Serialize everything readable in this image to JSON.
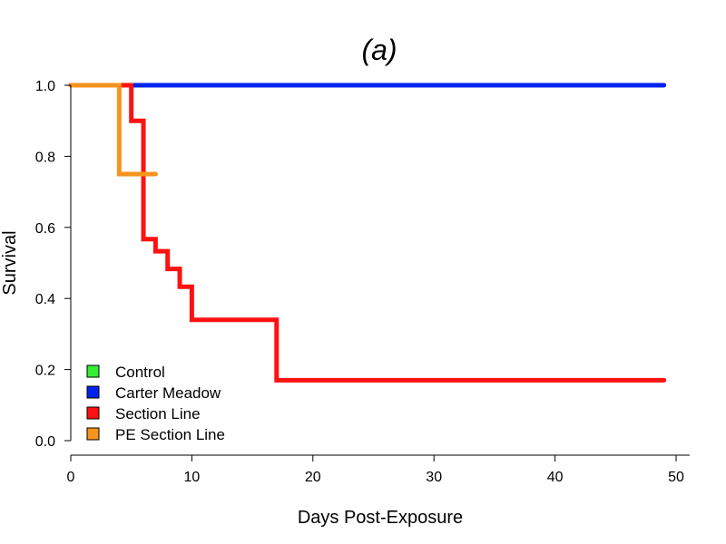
{
  "chart_data": {
    "type": "line",
    "step": true,
    "title": "(a)",
    "xlabel": "Days Post-Exposure",
    "ylabel": "Survival",
    "xlim": [
      0,
      50
    ],
    "ylim": [
      0,
      1.0
    ],
    "x_ticks": [
      "0",
      "10",
      "20",
      "30",
      "40",
      "50"
    ],
    "y_ticks": [
      "0.0",
      "0.2",
      "0.4",
      "0.6",
      "0.8",
      "1.0"
    ],
    "grid": false,
    "legend_position": "bottom-left",
    "series": [
      {
        "name": "Control",
        "color": "#33ee33",
        "points": []
      },
      {
        "name": "Carter Meadow",
        "color": "#0022ee",
        "points": [
          [
            0,
            1.0
          ],
          [
            49,
            1.0
          ]
        ]
      },
      {
        "name": "Section Line",
        "color": "#ff1111",
        "points": [
          [
            0,
            1.0
          ],
          [
            5,
            0.9
          ],
          [
            6,
            0.567
          ],
          [
            7,
            0.533
          ],
          [
            8,
            0.483
          ],
          [
            9,
            0.433
          ],
          [
            10,
            0.34
          ],
          [
            17,
            0.17
          ],
          [
            49,
            0.17
          ]
        ]
      },
      {
        "name": "PE Section Line",
        "color": "#f7941d",
        "points": [
          [
            0,
            1.0
          ],
          [
            4,
            0.75
          ],
          [
            7,
            0.75
          ]
        ]
      }
    ]
  }
}
